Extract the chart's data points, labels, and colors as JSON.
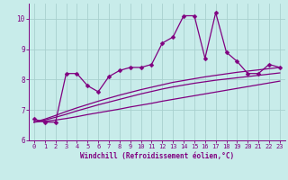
{
  "xlabel": "Windchill (Refroidissement éolien,°C)",
  "bg_color": "#c8ecea",
  "line_color": "#800080",
  "grid_color": "#a8d0ce",
  "x_data": [
    0,
    1,
    2,
    3,
    4,
    5,
    6,
    7,
    8,
    9,
    10,
    11,
    12,
    13,
    14,
    15,
    16,
    17,
    18,
    19,
    20,
    21,
    22,
    23
  ],
  "y_main": [
    6.7,
    6.6,
    6.6,
    8.2,
    8.2,
    7.8,
    7.6,
    8.1,
    8.3,
    8.4,
    8.4,
    8.5,
    9.2,
    9.4,
    10.1,
    10.1,
    8.7,
    10.2,
    8.9,
    8.6,
    8.2,
    8.2,
    8.5,
    8.4
  ],
  "y_trend1": [
    6.6,
    6.63,
    6.67,
    6.72,
    6.78,
    6.85,
    6.91,
    6.97,
    7.03,
    7.1,
    7.16,
    7.22,
    7.29,
    7.35,
    7.41,
    7.47,
    7.53,
    7.59,
    7.65,
    7.71,
    7.77,
    7.83,
    7.89,
    7.95
  ],
  "y_trend2": [
    6.6,
    6.67,
    6.76,
    6.86,
    6.97,
    7.07,
    7.17,
    7.26,
    7.35,
    7.44,
    7.53,
    7.61,
    7.69,
    7.76,
    7.82,
    7.88,
    7.93,
    7.98,
    8.02,
    8.06,
    8.1,
    8.14,
    8.18,
    8.22
  ],
  "y_trend3": [
    6.6,
    6.7,
    6.82,
    6.95,
    7.07,
    7.18,
    7.29,
    7.39,
    7.49,
    7.58,
    7.67,
    7.75,
    7.83,
    7.91,
    7.97,
    8.03,
    8.09,
    8.14,
    8.19,
    8.24,
    8.28,
    8.32,
    8.36,
    8.4
  ],
  "ylim": [
    6.0,
    10.5
  ],
  "xlim": [
    -0.5,
    23.5
  ],
  "yticks": [
    6,
    7,
    8,
    9,
    10
  ],
  "xticks": [
    0,
    1,
    2,
    3,
    4,
    5,
    6,
    7,
    8,
    9,
    10,
    11,
    12,
    13,
    14,
    15,
    16,
    17,
    18,
    19,
    20,
    21,
    22,
    23
  ],
  "marker_size": 2.5,
  "linewidth": 0.9,
  "tick_fontsize": 5.0,
  "xlabel_fontsize": 5.5
}
